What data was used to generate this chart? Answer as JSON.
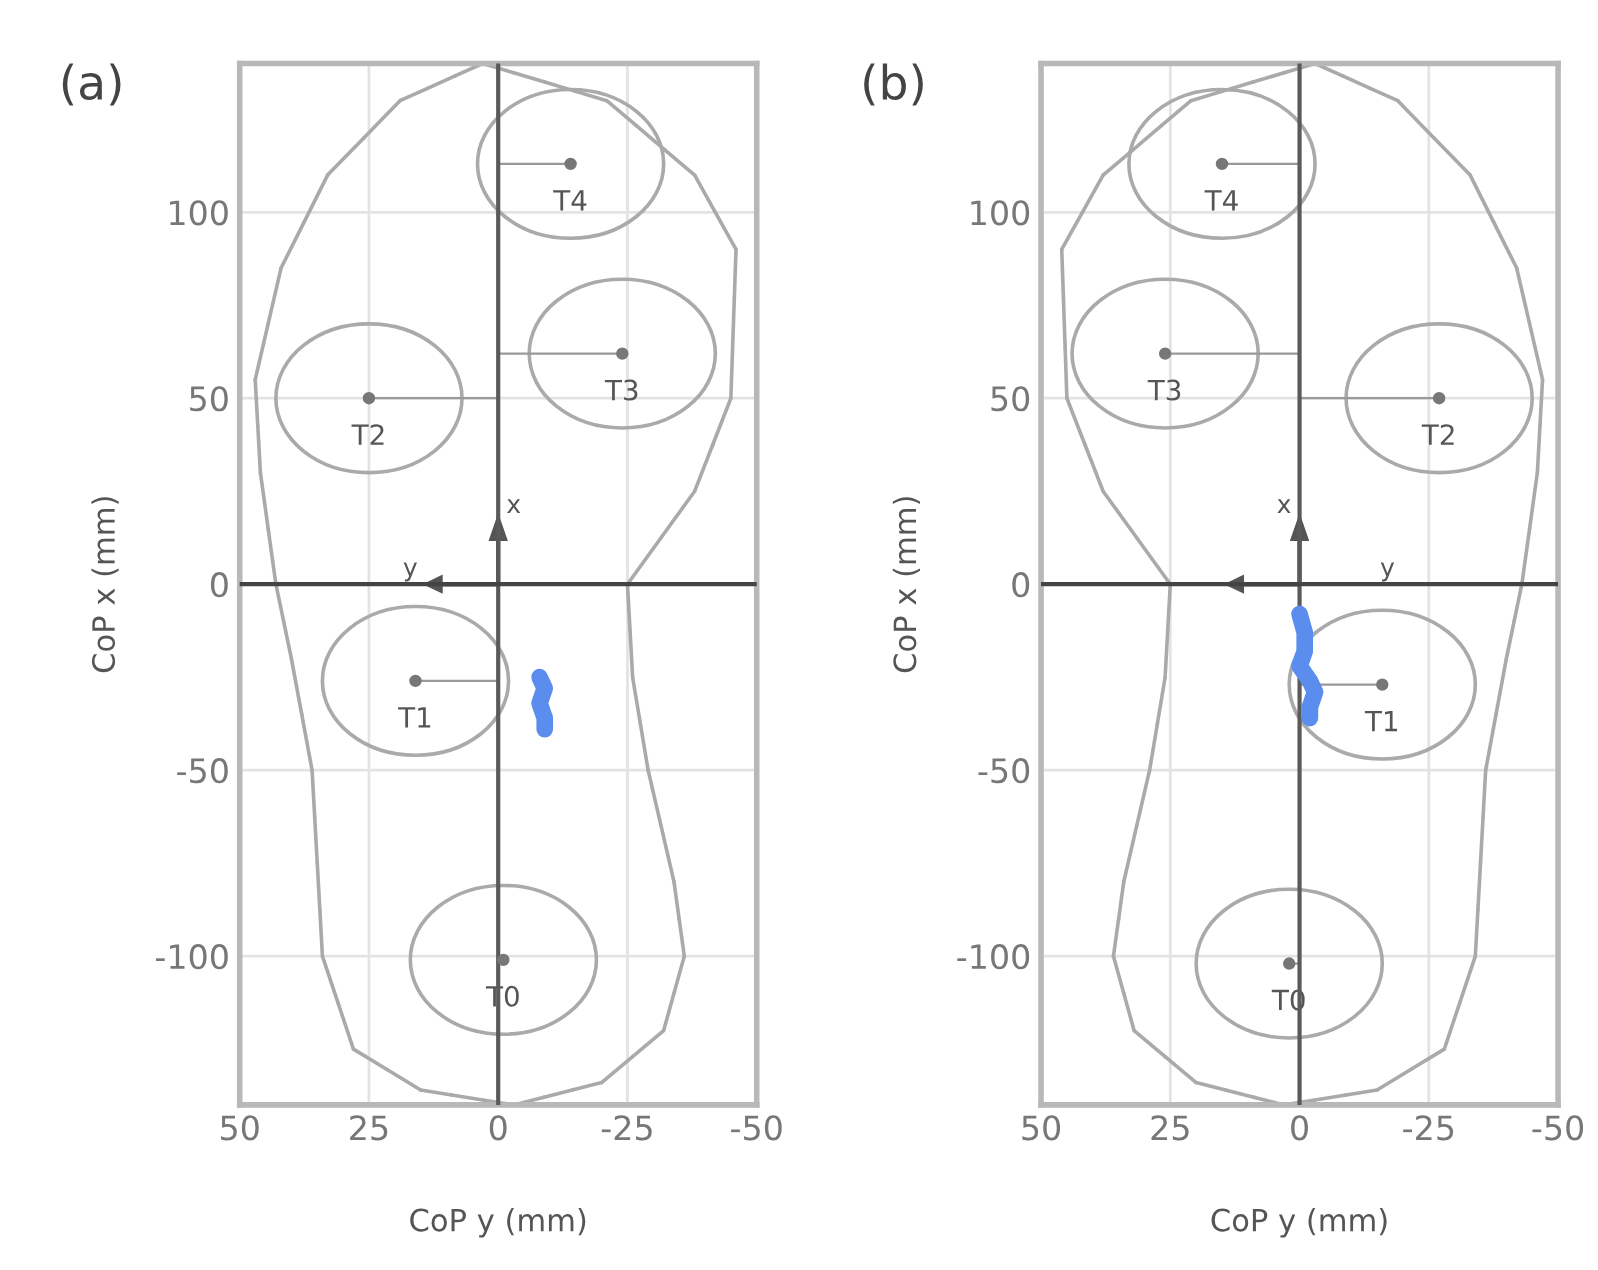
{
  "chart_data": [
    {
      "type": "scatter",
      "title": "(a)",
      "xlabel": "CoP y (mm)",
      "ylabel": "CoP x (mm)",
      "xlim": [
        50,
        -50
      ],
      "xticks": [
        50,
        25,
        0,
        -25,
        -50
      ],
      "ylim": [
        -140,
        140
      ],
      "yticks": [
        -100,
        -50,
        0,
        50,
        100
      ],
      "grid": true,
      "legend": false,
      "ref_lines": [
        {
          "axis": "x",
          "value": 0,
          "color": "#5a5a5a"
        },
        {
          "axis": "y",
          "value": 0,
          "color": "#444444"
        }
      ],
      "annotations": [
        "x",
        "y"
      ],
      "series": [
        {
          "color": "#777777",
          "marker": "circle",
          "x": [
            -1,
            16,
            25,
            -24,
            -14
          ],
          "values": [
            -101,
            -26,
            50,
            62,
            113
          ],
          "value_labels": [
            "T0",
            "T1",
            "T2",
            "T3",
            "T4"
          ]
        },
        {
          "type": "line",
          "color": "#5b8def",
          "marker": "none",
          "x": [
            -8,
            -9,
            -8,
            -9,
            -9
          ],
          "values": [
            -25,
            -28,
            -32,
            -36,
            -39
          ]
        }
      ]
    },
    {
      "type": "scatter",
      "title": "(b)",
      "xlabel": "CoP y (mm)",
      "ylabel": "CoP x (mm)",
      "xlim": [
        50,
        -50
      ],
      "xticks": [
        50,
        25,
        0,
        -25,
        -50
      ],
      "ylim": [
        -140,
        140
      ],
      "yticks": [
        -100,
        -50,
        0,
        50,
        100
      ],
      "grid": true,
      "legend": false,
      "ref_lines": [
        {
          "axis": "x",
          "value": 0,
          "color": "#5a5a5a"
        },
        {
          "axis": "y",
          "value": 0,
          "color": "#444444"
        }
      ],
      "annotations": [
        "x",
        "y"
      ],
      "series": [
        {
          "color": "#777777",
          "marker": "circle",
          "x": [
            2,
            -16,
            -27,
            26,
            15
          ],
          "values": [
            -102,
            -27,
            50,
            62,
            113
          ],
          "value_labels": [
            "T0",
            "T1",
            "T2",
            "T3",
            "T4"
          ]
        },
        {
          "type": "line",
          "color": "#5b8def",
          "marker": "none",
          "x": [
            0,
            -1,
            -1,
            0,
            -2,
            -3,
            -2,
            -2
          ],
          "values": [
            -8,
            -13,
            -18,
            -22,
            -26,
            -29,
            -33,
            -36
          ]
        }
      ]
    }
  ]
}
